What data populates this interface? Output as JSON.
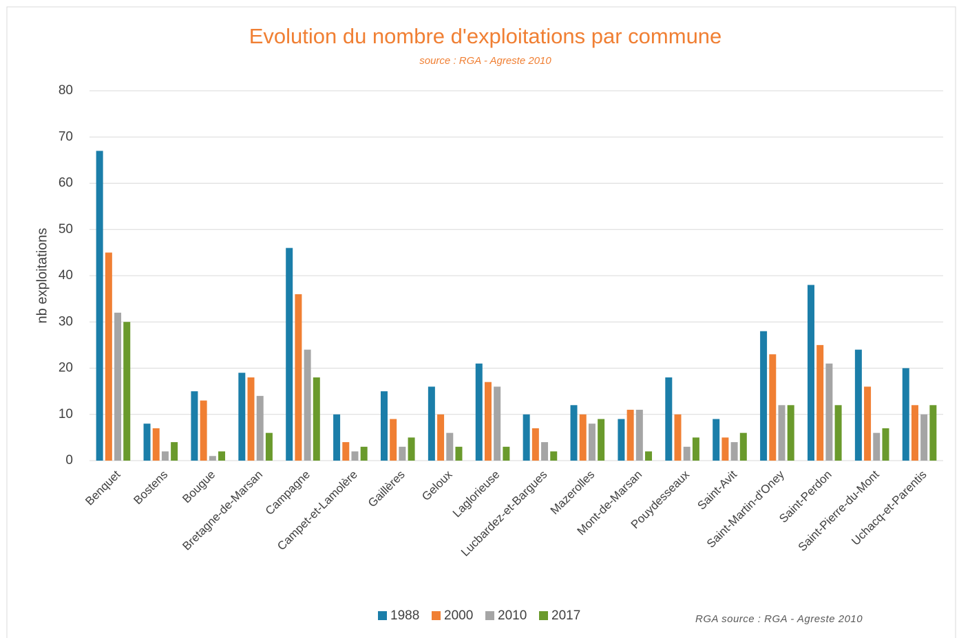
{
  "chart_data": {
    "type": "bar",
    "title": "Evolution du nombre d'exploitations par commune",
    "subtitle": "source : RGA - Agreste 2010",
    "y_label": "nb exploitations",
    "footnote": "RGA source : RGA - Agreste 2010",
    "categories": [
      "Benquet",
      "Bostens",
      "Bougue",
      "Bretagne-de-Marsan",
      "Campagne",
      "Campet-et-Lamolère",
      "Gaillères",
      "Geloux",
      "Laglorieuse",
      "Lucbardez-et-Bargues",
      "Mazerolles",
      "Mont-de-Marsan",
      "Pouydesseaux",
      "Saint-Avit",
      "Saint-Martin-d'Oney",
      "Saint-Perdon",
      "Saint-Pierre-du-Mont",
      "Uchacq-et-Parentis"
    ],
    "series": [
      {
        "name": "1988",
        "color": "#1b7ea9",
        "values": [
          67,
          8,
          15,
          19,
          46,
          10,
          15,
          16,
          21,
          10,
          12,
          9,
          18,
          9,
          28,
          38,
          24,
          20
        ]
      },
      {
        "name": "2000",
        "color": "#f07f33",
        "values": [
          45,
          7,
          13,
          18,
          36,
          4,
          9,
          10,
          17,
          7,
          10,
          11,
          10,
          5,
          23,
          25,
          16,
          12
        ]
      },
      {
        "name": "2010",
        "color": "#a5a5a5",
        "values": [
          32,
          2,
          1,
          14,
          24,
          2,
          3,
          6,
          16,
          4,
          8,
          11,
          3,
          4,
          12,
          21,
          6,
          10
        ]
      },
      {
        "name": "2017",
        "color": "#6a9a2c",
        "values": [
          30,
          4,
          2,
          6,
          18,
          3,
          5,
          3,
          3,
          2,
          9,
          2,
          5,
          6,
          12,
          12,
          7,
          12
        ]
      }
    ],
    "ylim": [
      0,
      80
    ],
    "yticks": [
      0,
      10,
      20,
      30,
      40,
      50,
      60,
      70,
      80
    ],
    "grid": true,
    "legend": "bottom"
  }
}
